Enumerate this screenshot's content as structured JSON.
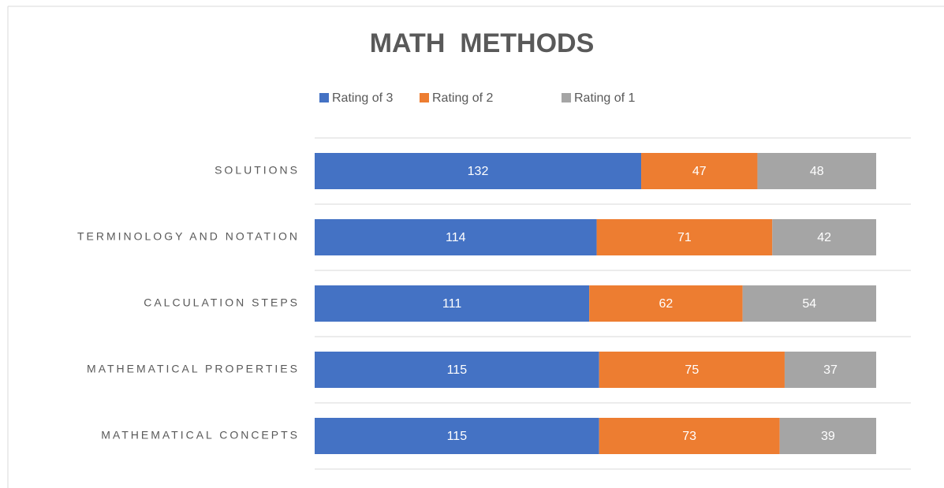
{
  "chart_data": {
    "type": "stacked-bar-horizontal",
    "title": "MATH  METHODS",
    "categories": [
      "SOLUTIONS",
      "TERMINOLOGY AND NOTATION",
      "CALCULATION STEPS",
      "MATHEMATICAL PROPERTIES",
      "MATHEMATICAL CONCEPTS"
    ],
    "series": [
      {
        "name": "Rating of 3",
        "color": "#4472c4",
        "values": [
          132,
          114,
          111,
          115,
          115
        ]
      },
      {
        "name": "Rating of 2",
        "color": "#ed7d31",
        "values": [
          47,
          71,
          62,
          75,
          73
        ]
      },
      {
        "name": "Rating of 1",
        "color": "#a5a5a5",
        "values": [
          48,
          42,
          54,
          37,
          39
        ]
      }
    ],
    "xlim": [
      0,
      227
    ],
    "legend": "top"
  }
}
